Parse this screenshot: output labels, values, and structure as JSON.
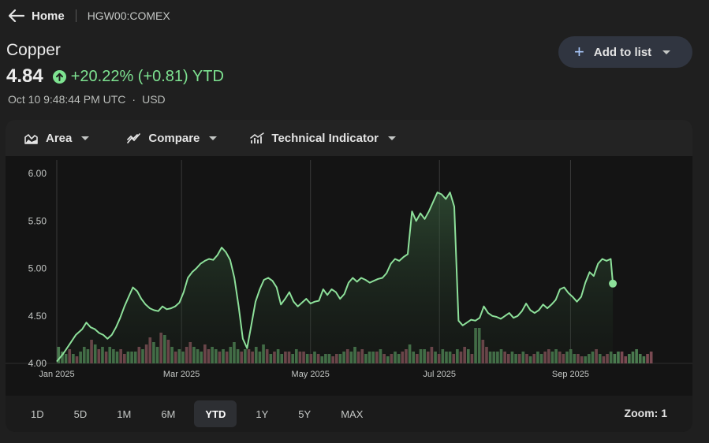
{
  "nav": {
    "home_label": "Home",
    "ticker": "HGW00:COMEX"
  },
  "quote": {
    "name": "Copper",
    "price": "4.84",
    "change": "+20.22% (+0.81) YTD",
    "timestamp": "Oct 10 9:48:44 PM UTC",
    "currency": "USD"
  },
  "add_to_list": {
    "label": "Add to list"
  },
  "toolbar": {
    "area_label": "Area",
    "compare_label": "Compare",
    "indicator_label": "Technical Indicator"
  },
  "ranges": [
    "1D",
    "5D",
    "1M",
    "6M",
    "YTD",
    "1Y",
    "5Y",
    "MAX"
  ],
  "active_range": "YTD",
  "zoom_label": "Zoom: 1",
  "colors": {
    "line": "#8de09a",
    "positive": "#7ee391",
    "bar_up": "#4a7a4f",
    "bar_down": "#7a4a52",
    "accent": "#a8c7fa"
  },
  "chart_data": {
    "type": "area",
    "ylim": [
      4.0,
      6.0
    ],
    "yticks": [
      4.0,
      4.5,
      5.0,
      5.5,
      6.0
    ],
    "ytick_labels": [
      "4.00",
      "4.50",
      "5.00",
      "5.50",
      "6.00"
    ],
    "xticks": [
      "Jan 2025",
      "Mar 2025",
      "May 2025",
      "Jul 2025",
      "Sep 2025"
    ],
    "xtick_days": [
      0,
      59,
      120,
      181,
      243
    ],
    "last_day": 282,
    "series": [
      {
        "points": [
          [
            0,
            4.02
          ],
          [
            3,
            4.1
          ],
          [
            6,
            4.2
          ],
          [
            9,
            4.3
          ],
          [
            12,
            4.36
          ],
          [
            14,
            4.43
          ],
          [
            16,
            4.38
          ],
          [
            18,
            4.36
          ],
          [
            20,
            4.32
          ],
          [
            22,
            4.3
          ],
          [
            24,
            4.26
          ],
          [
            26,
            4.3
          ],
          [
            28,
            4.38
          ],
          [
            30,
            4.48
          ],
          [
            32,
            4.6
          ],
          [
            34,
            4.7
          ],
          [
            36,
            4.8
          ],
          [
            38,
            4.76
          ],
          [
            40,
            4.68
          ],
          [
            42,
            4.62
          ],
          [
            44,
            4.58
          ],
          [
            46,
            4.56
          ],
          [
            48,
            4.55
          ],
          [
            50,
            4.6
          ],
          [
            52,
            4.57
          ],
          [
            54,
            4.58
          ],
          [
            56,
            4.6
          ],
          [
            58,
            4.64
          ],
          [
            60,
            4.75
          ],
          [
            62,
            4.9
          ],
          [
            64,
            4.96
          ],
          [
            66,
            5.0
          ],
          [
            68,
            5.05
          ],
          [
            70,
            5.08
          ],
          [
            72,
            5.1
          ],
          [
            74,
            5.09
          ],
          [
            76,
            5.14
          ],
          [
            78,
            5.22
          ],
          [
            80,
            5.17
          ],
          [
            82,
            5.09
          ],
          [
            84,
            4.9
          ],
          [
            86,
            4.6
          ],
          [
            88,
            4.26
          ],
          [
            90,
            4.16
          ],
          [
            92,
            4.4
          ],
          [
            94,
            4.65
          ],
          [
            96,
            4.78
          ],
          [
            98,
            4.88
          ],
          [
            100,
            4.9
          ],
          [
            102,
            4.87
          ],
          [
            104,
            4.8
          ],
          [
            106,
            4.62
          ],
          [
            108,
            4.68
          ],
          [
            110,
            4.75
          ],
          [
            112,
            4.65
          ],
          [
            114,
            4.6
          ],
          [
            116,
            4.64
          ],
          [
            118,
            4.68
          ],
          [
            120,
            4.63
          ],
          [
            122,
            4.65
          ],
          [
            124,
            4.66
          ],
          [
            126,
            4.78
          ],
          [
            128,
            4.72
          ],
          [
            130,
            4.78
          ],
          [
            132,
            4.75
          ],
          [
            134,
            4.68
          ],
          [
            136,
            4.73
          ],
          [
            138,
            4.85
          ],
          [
            140,
            4.9
          ],
          [
            142,
            4.86
          ],
          [
            144,
            4.9
          ],
          [
            146,
            4.88
          ],
          [
            148,
            4.85
          ],
          [
            150,
            4.87
          ],
          [
            152,
            4.89
          ],
          [
            154,
            4.9
          ],
          [
            156,
            4.95
          ],
          [
            158,
            5.05
          ],
          [
            160,
            5.1
          ],
          [
            162,
            5.08
          ],
          [
            164,
            5.12
          ],
          [
            166,
            5.15
          ],
          [
            168,
            5.6
          ],
          [
            170,
            5.5
          ],
          [
            172,
            5.58
          ],
          [
            174,
            5.52
          ],
          [
            176,
            5.6
          ],
          [
            178,
            5.7
          ],
          [
            180,
            5.8
          ],
          [
            182,
            5.78
          ],
          [
            184,
            5.73
          ],
          [
            186,
            5.8
          ],
          [
            188,
            5.65
          ],
          [
            190,
            4.45
          ],
          [
            192,
            4.4
          ],
          [
            194,
            4.43
          ],
          [
            196,
            4.46
          ],
          [
            198,
            4.45
          ],
          [
            200,
            4.48
          ],
          [
            202,
            4.6
          ],
          [
            204,
            4.53
          ],
          [
            206,
            4.5
          ],
          [
            208,
            4.49
          ],
          [
            210,
            4.47
          ],
          [
            212,
            4.5
          ],
          [
            214,
            4.53
          ],
          [
            216,
            4.48
          ],
          [
            218,
            4.5
          ],
          [
            220,
            4.55
          ],
          [
            222,
            4.63
          ],
          [
            224,
            4.56
          ],
          [
            226,
            4.53
          ],
          [
            228,
            4.56
          ],
          [
            230,
            4.62
          ],
          [
            232,
            4.58
          ],
          [
            234,
            4.62
          ],
          [
            236,
            4.67
          ],
          [
            238,
            4.78
          ],
          [
            240,
            4.8
          ],
          [
            242,
            4.74
          ],
          [
            244,
            4.7
          ],
          [
            246,
            4.65
          ],
          [
            248,
            4.7
          ],
          [
            250,
            4.85
          ],
          [
            252,
            4.96
          ],
          [
            254,
            4.92
          ],
          [
            256,
            5.05
          ],
          [
            258,
            5.1
          ],
          [
            260,
            5.08
          ],
          [
            262,
            5.1
          ],
          [
            263,
            4.84
          ]
        ]
      }
    ],
    "volume": [
      0.7,
      0.5,
      0.4,
      0.6,
      0.4,
      0.3,
      0.5,
      0.7,
      0.6,
      1.0,
      0.8,
      0.6,
      0.7,
      0.5,
      0.7,
      0.6,
      0.5,
      0.6,
      0.4,
      0.5,
      0.5,
      0.5,
      0.7,
      0.6,
      0.8,
      1.1,
      0.9,
      0.7,
      1.3,
      1.2,
      1.0,
      0.7,
      0.5,
      0.6,
      0.5,
      0.7,
      0.9,
      0.7,
      0.6,
      0.5,
      0.8,
      0.6,
      0.7,
      0.6,
      0.5,
      0.6,
      0.5,
      0.7,
      0.9,
      0.6,
      0.5,
      0.6,
      0.6,
      0.5,
      0.7,
      0.5,
      0.8,
      0.6,
      0.4,
      0.5,
      0.6,
      0.4,
      0.5,
      0.5,
      0.4,
      0.6,
      0.5,
      0.5,
      0.4,
      0.4,
      0.5,
      0.4,
      0.3,
      0.4,
      0.4,
      0.3,
      0.4,
      0.4,
      0.5,
      0.6,
      0.5,
      0.7,
      0.5,
      0.6,
      0.4,
      0.5,
      0.5,
      0.5,
      0.6,
      0.4,
      0.3,
      0.4,
      0.5,
      0.4,
      0.5,
      0.6,
      0.8,
      0.5,
      0.4,
      0.6,
      0.6,
      0.5,
      0.7,
      0.5,
      0.4,
      0.6,
      0.5,
      0.5,
      0.4,
      0.6,
      0.5,
      0.7,
      0.6,
      0.4,
      1.5,
      1.5,
      1.0,
      0.7,
      0.5,
      0.5,
      0.5,
      0.6,
      0.5,
      0.4,
      0.5,
      0.4,
      0.4,
      0.5,
      0.4,
      0.3,
      0.4,
      0.5,
      0.4,
      0.5,
      0.6,
      0.5,
      0.6,
      0.5,
      0.4,
      0.5,
      0.6,
      0.4,
      0.4,
      0.3,
      0.3,
      0.4,
      0.5,
      0.6,
      0.4,
      0.3,
      0.4,
      0.5,
      0.4,
      0.5,
      0.5,
      0.3,
      0.4,
      0.5,
      0.6,
      0.4,
      0.3,
      0.4,
      0.5
    ],
    "volume_dir": "gggrgrgggrgrgrgggrrgggrgrrggrgrgrggrrgggrrggrgrgggrgrrgggrgrggrrggrrgrgrgggrrggrggrrgggrgrgrggrrggrggrrgrgggrgrrgrggrrggggrrggrgrgrggrrggrrgggrrgggrgrrgggrrgggggrrgrg"
  }
}
